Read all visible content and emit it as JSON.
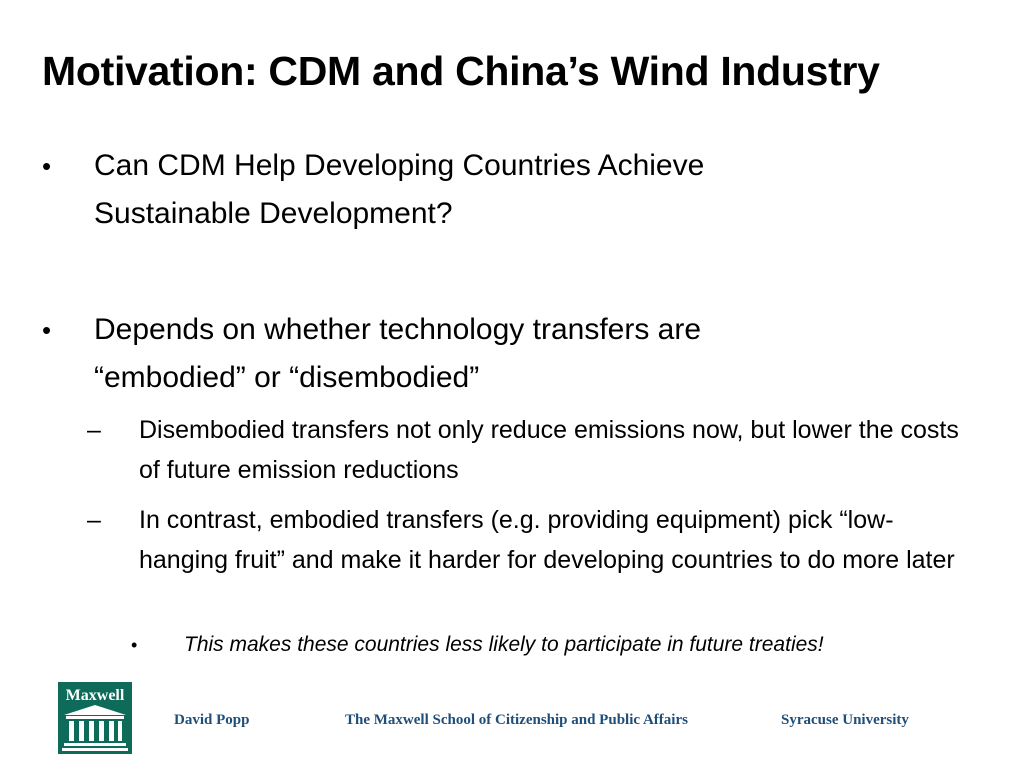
{
  "slide": {
    "title": "Motivation: CDM and China’s Wind Industry",
    "bullets": [
      {
        "marker": "•",
        "text": "Can CDM Help Developing Countries Achieve Sustainable Development?"
      },
      {
        "marker": "•",
        "text": "Depends on whether technology transfers are “embodied” or “disembodied”"
      }
    ],
    "sub_bullets": [
      {
        "marker": "–",
        "text": "Disembodied transfers not only reduce emissions now, but lower the costs of future emission reductions"
      },
      {
        "marker": "–",
        "text": "In contrast, embodied transfers (e.g. providing equipment) pick “low-hanging fruit” and make it harder for developing countries to do more later"
      }
    ],
    "sub_sub_bullet": {
      "marker": "•",
      "text": "This makes these countries less likely to participate in future treaties!"
    }
  },
  "footer": {
    "logo_text": "Maxwell",
    "author": "David Popp",
    "school": "The Maxwell School of Citizenship and Public Affairs",
    "university": "Syracuse University",
    "logo_icon": "maxwell-building-logo-icon",
    "logo_color": "#0e6b5a",
    "text_color": "#1f4e79"
  }
}
